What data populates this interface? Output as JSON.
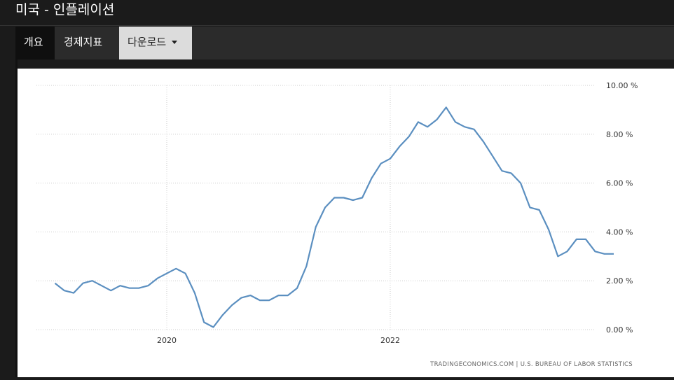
{
  "header": {
    "title": "미국 - 인플레이션"
  },
  "nav": {
    "tab_overview": "개요",
    "tab_indicators": "경제지표",
    "tab_download": "다운로드"
  },
  "colors": {
    "line": "#5b8fc0",
    "grid": "#cccccc",
    "accent_dark": "#0f0f0f"
  },
  "chart_data": {
    "type": "line",
    "title": "",
    "xlabel": "",
    "ylabel": "",
    "x_ticks": [
      "2020",
      "2022"
    ],
    "y_ticks": [
      "0.00 %",
      "2.00 %",
      "4.00 %",
      "6.00 %",
      "8.00 %",
      "10.00 %"
    ],
    "ylim": [
      0,
      10
    ],
    "grid": true,
    "source": "TRADINGECONOMICS.COM  |  U.S. BUREAU OF LABOR STATISTICS",
    "x": [
      "2019-01",
      "2019-02",
      "2019-03",
      "2019-04",
      "2019-05",
      "2019-06",
      "2019-07",
      "2019-08",
      "2019-09",
      "2019-10",
      "2019-11",
      "2019-12",
      "2020-01",
      "2020-02",
      "2020-03",
      "2020-04",
      "2020-05",
      "2020-06",
      "2020-07",
      "2020-08",
      "2020-09",
      "2020-10",
      "2020-11",
      "2020-12",
      "2021-01",
      "2021-02",
      "2021-03",
      "2021-04",
      "2021-05",
      "2021-06",
      "2021-07",
      "2021-08",
      "2021-09",
      "2021-10",
      "2021-11",
      "2021-12",
      "2022-01",
      "2022-02",
      "2022-03",
      "2022-04",
      "2022-05",
      "2022-06",
      "2022-07",
      "2022-08",
      "2022-09",
      "2022-10",
      "2022-11",
      "2022-12",
      "2023-01",
      "2023-02",
      "2023-03",
      "2023-04",
      "2023-05",
      "2023-06",
      "2023-07",
      "2023-08",
      "2023-09",
      "2023-10",
      "2023-11",
      "2023-12",
      "2024-01"
    ],
    "series": [
      {
        "values": [
          1.9,
          1.6,
          1.5,
          1.9,
          2.0,
          1.8,
          1.6,
          1.8,
          1.7,
          1.7,
          1.8,
          2.1,
          2.3,
          2.5,
          2.3,
          1.5,
          0.3,
          0.1,
          0.6,
          1.0,
          1.3,
          1.4,
          1.2,
          1.2,
          1.4,
          1.4,
          1.7,
          2.6,
          4.2,
          5.0,
          5.4,
          5.4,
          5.3,
          5.4,
          6.2,
          6.8,
          7.0,
          7.5,
          7.9,
          8.5,
          8.3,
          8.6,
          9.1,
          8.5,
          8.3,
          8.2,
          7.7,
          7.1,
          6.5,
          6.4,
          6.0,
          5.0,
          4.9,
          4.1,
          3.0,
          3.2,
          3.7,
          3.7,
          3.2,
          3.1,
          3.1
        ]
      }
    ]
  }
}
